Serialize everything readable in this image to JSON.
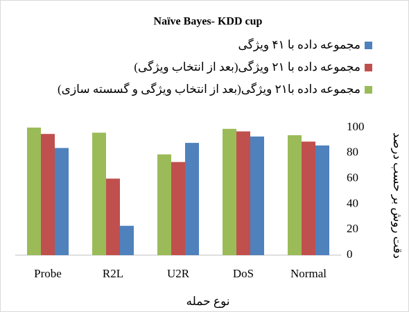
{
  "chart_data": {
    "type": "bar",
    "title": "Naïve Bayes- KDD cup",
    "x_label": "نوع حمله",
    "y_label": "دقت روش بر حسب درصد",
    "categories": [
      "Probe",
      "R2L",
      "U2R",
      "DoS",
      "Normal"
    ],
    "series": [
      {
        "name": "مجموعه داده با ۴۱ ویژگی",
        "color": "#4f81bd",
        "values": [
          84,
          23,
          88,
          93,
          86
        ]
      },
      {
        "name": "مجموعه داده با ۲۱ ویژگی(بعد از انتخاب ویژگی)",
        "color": "#c0504d",
        "values": [
          95,
          60,
          73,
          97,
          89
        ]
      },
      {
        "name": "مجموعه داده با۲۱ ویژگی(بعد از انتخاب ویژگی و گسسته سازی)",
        "color": "#9bbb59",
        "values": [
          100,
          96,
          79,
          99,
          94
        ]
      }
    ],
    "ylim": [
      0,
      100
    ],
    "yticks": [
      0,
      20,
      40,
      60,
      80,
      100
    ],
    "y_axis_side": "right",
    "grid": false
  }
}
